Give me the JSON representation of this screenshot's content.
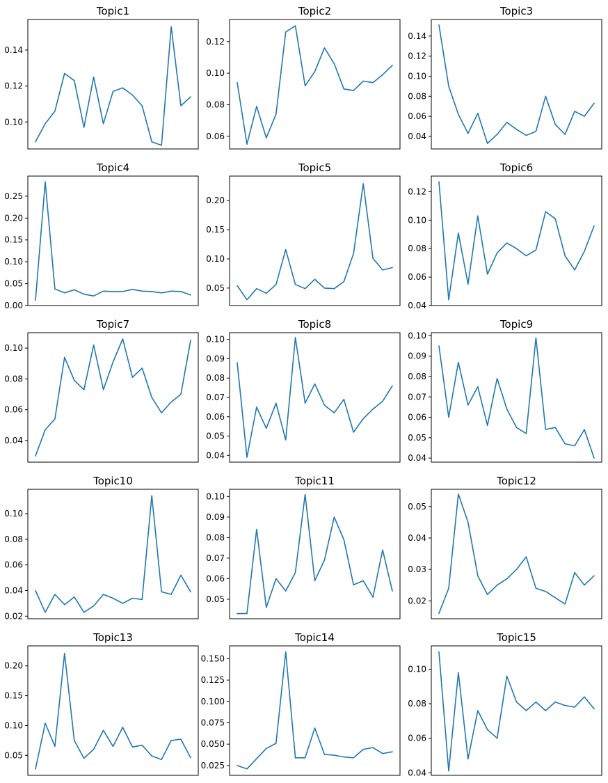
{
  "figure": {
    "line_color": "#1f77b4"
  },
  "chart_data": [
    {
      "type": "line",
      "title": "Topic1",
      "xlabel": "",
      "ylabel": "",
      "x_ticks_shown": false,
      "ylim": [
        0.085,
        0.157
      ],
      "yticks": [
        0.1,
        0.12,
        0.14
      ],
      "ytick_labels": [
        "0.10",
        "0.12",
        "0.14"
      ],
      "series": [
        {
          "name": "Topic1",
          "values": [
            0.089,
            0.099,
            0.106,
            0.127,
            0.123,
            0.097,
            0.125,
            0.099,
            0.117,
            0.119,
            0.115,
            0.109,
            0.089,
            0.087,
            0.153,
            0.109,
            0.114
          ]
        }
      ]
    },
    {
      "type": "line",
      "title": "Topic2",
      "xlabel": "",
      "ylabel": "",
      "x_ticks_shown": false,
      "ylim": [
        0.052,
        0.134
      ],
      "yticks": [
        0.06,
        0.08,
        0.1,
        0.12
      ],
      "ytick_labels": [
        "0.06",
        "0.08",
        "0.10",
        "0.12"
      ],
      "series": [
        {
          "name": "Topic2",
          "values": [
            0.094,
            0.055,
            0.079,
            0.059,
            0.074,
            0.126,
            0.13,
            0.092,
            0.101,
            0.116,
            0.106,
            0.09,
            0.089,
            0.095,
            0.094,
            0.099,
            0.105
          ]
        }
      ]
    },
    {
      "type": "line",
      "title": "Topic3",
      "xlabel": "",
      "ylabel": "",
      "x_ticks_shown": false,
      "ylim": [
        0.0275,
        0.1565
      ],
      "yticks": [
        0.04,
        0.06,
        0.08,
        0.1,
        0.12,
        0.14
      ],
      "ytick_labels": [
        "0.04",
        "0.06",
        "0.08",
        "0.10",
        "0.12",
        "0.14"
      ],
      "series": [
        {
          "name": "Topic3",
          "values": [
            0.151,
            0.09,
            0.062,
            0.043,
            0.063,
            0.033,
            0.042,
            0.054,
            0.047,
            0.041,
            0.045,
            0.08,
            0.052,
            0.042,
            0.065,
            0.06,
            0.073
          ]
        }
      ]
    },
    {
      "type": "line",
      "title": "Topic4",
      "xlabel": "",
      "ylabel": "",
      "x_ticks_shown": false,
      "ylim": [
        0.0,
        0.296
      ],
      "yticks": [
        0.0,
        0.05,
        0.1,
        0.15,
        0.2,
        0.25
      ],
      "ytick_labels": [
        "0.00",
        "0.05",
        "0.10",
        "0.15",
        "0.20",
        "0.25"
      ],
      "series": [
        {
          "name": "Topic4",
          "values": [
            0.012,
            0.283,
            0.038,
            0.029,
            0.036,
            0.026,
            0.022,
            0.033,
            0.032,
            0.032,
            0.037,
            0.033,
            0.032,
            0.029,
            0.033,
            0.032,
            0.024
          ]
        }
      ]
    },
    {
      "type": "line",
      "title": "Topic5",
      "xlabel": "",
      "ylabel": "",
      "x_ticks_shown": false,
      "ylim": [
        0.02,
        0.242
      ],
      "yticks": [
        0.05,
        0.1,
        0.15,
        0.2
      ],
      "ytick_labels": [
        "0.05",
        "0.10",
        "0.15",
        "0.20"
      ],
      "series": [
        {
          "name": "Topic5",
          "values": [
            0.054,
            0.03,
            0.049,
            0.041,
            0.056,
            0.116,
            0.056,
            0.049,
            0.065,
            0.05,
            0.049,
            0.061,
            0.109,
            0.229,
            0.101,
            0.081,
            0.085
          ]
        }
      ]
    },
    {
      "type": "line",
      "title": "Topic6",
      "xlabel": "",
      "ylabel": "",
      "x_ticks_shown": false,
      "ylim": [
        0.04,
        0.131
      ],
      "yticks": [
        0.04,
        0.06,
        0.08,
        0.1,
        0.12
      ],
      "ytick_labels": [
        "0.04",
        "0.06",
        "0.08",
        "0.10",
        "0.12"
      ],
      "series": [
        {
          "name": "Topic6",
          "values": [
            0.127,
            0.044,
            0.091,
            0.055,
            0.103,
            0.062,
            0.077,
            0.084,
            0.08,
            0.075,
            0.079,
            0.106,
            0.101,
            0.075,
            0.065,
            0.078,
            0.096
          ]
        }
      ]
    },
    {
      "type": "line",
      "title": "Topic7",
      "xlabel": "",
      "ylabel": "",
      "x_ticks_shown": false,
      "ylim": [
        0.026,
        0.11
      ],
      "yticks": [
        0.04,
        0.06,
        0.08,
        0.1
      ],
      "ytick_labels": [
        "0.04",
        "0.06",
        "0.08",
        "0.10"
      ],
      "series": [
        {
          "name": "Topic7",
          "values": [
            0.03,
            0.047,
            0.054,
            0.094,
            0.079,
            0.073,
            0.102,
            0.073,
            0.091,
            0.106,
            0.081,
            0.087,
            0.068,
            0.058,
            0.065,
            0.07,
            0.105
          ]
        }
      ]
    },
    {
      "type": "line",
      "title": "Topic8",
      "xlabel": "",
      "ylabel": "",
      "x_ticks_shown": false,
      "ylim": [
        0.0365,
        0.1035
      ],
      "yticks": [
        0.04,
        0.05,
        0.06,
        0.07,
        0.08,
        0.09,
        0.1
      ],
      "ytick_labels": [
        "0.04",
        "0.05",
        "0.06",
        "0.07",
        "0.08",
        "0.09",
        "0.10"
      ],
      "series": [
        {
          "name": "Topic8",
          "values": [
            0.088,
            0.039,
            0.065,
            0.054,
            0.067,
            0.048,
            0.101,
            0.067,
            0.077,
            0.066,
            0.062,
            0.069,
            0.052,
            0.059,
            0.064,
            0.068,
            0.076
          ]
        }
      ]
    },
    {
      "type": "line",
      "title": "Topic9",
      "xlabel": "",
      "ylabel": "",
      "x_ticks_shown": false,
      "ylim": [
        0.038,
        0.1015
      ],
      "yticks": [
        0.04,
        0.05,
        0.06,
        0.07,
        0.08,
        0.09,
        0.1
      ],
      "ytick_labels": [
        "0.04",
        "0.05",
        "0.06",
        "0.07",
        "0.08",
        "0.09",
        "0.10"
      ],
      "series": [
        {
          "name": "Topic9",
          "values": [
            0.095,
            0.06,
            0.087,
            0.066,
            0.075,
            0.056,
            0.079,
            0.064,
            0.055,
            0.052,
            0.099,
            0.054,
            0.055,
            0.047,
            0.046,
            0.054,
            0.04
          ]
        }
      ]
    },
    {
      "type": "line",
      "title": "Topic10",
      "xlabel": "",
      "ylabel": "",
      "x_ticks_shown": false,
      "ylim": [
        0.018,
        0.119
      ],
      "yticks": [
        0.02,
        0.04,
        0.06,
        0.08,
        0.1
      ],
      "ytick_labels": [
        "0.02",
        "0.04",
        "0.06",
        "0.08",
        "0.10"
      ],
      "series": [
        {
          "name": "Topic10",
          "values": [
            0.04,
            0.023,
            0.037,
            0.029,
            0.035,
            0.023,
            0.028,
            0.037,
            0.034,
            0.03,
            0.034,
            0.033,
            0.114,
            0.039,
            0.037,
            0.052,
            0.039
          ]
        }
      ]
    },
    {
      "type": "line",
      "title": "Topic11",
      "xlabel": "",
      "ylabel": "",
      "x_ticks_shown": false,
      "ylim": [
        0.0405,
        0.1035
      ],
      "yticks": [
        0.05,
        0.06,
        0.07,
        0.08,
        0.09,
        0.1
      ],
      "ytick_labels": [
        "0.05",
        "0.06",
        "0.07",
        "0.08",
        "0.09",
        "0.10"
      ],
      "series": [
        {
          "name": "Topic11",
          "values": [
            0.043,
            0.043,
            0.084,
            0.046,
            0.06,
            0.054,
            0.063,
            0.101,
            0.059,
            0.069,
            0.09,
            0.079,
            0.057,
            0.059,
            0.051,
            0.074,
            0.054
          ]
        }
      ]
    },
    {
      "type": "line",
      "title": "Topic12",
      "xlabel": "",
      "ylabel": "",
      "x_ticks_shown": false,
      "ylim": [
        0.0143,
        0.0555
      ],
      "yticks": [
        0.02,
        0.03,
        0.04,
        0.05
      ],
      "ytick_labels": [
        "0.02",
        "0.03",
        "0.04",
        "0.05"
      ],
      "series": [
        {
          "name": "Topic12",
          "values": [
            0.016,
            0.024,
            0.054,
            0.045,
            0.028,
            0.022,
            0.025,
            0.027,
            0.03,
            0.034,
            0.024,
            0.023,
            0.021,
            0.019,
            0.029,
            0.025,
            0.028
          ]
        }
      ]
    },
    {
      "type": "line",
      "title": "Topic13",
      "xlabel": "",
      "ylabel": "",
      "x_ticks_shown": false,
      "ylim": [
        0.0165,
        0.2335
      ],
      "yticks": [
        0.05,
        0.1,
        0.15,
        0.2
      ],
      "ytick_labels": [
        "0.05",
        "0.10",
        "0.15",
        "0.20"
      ],
      "series": [
        {
          "name": "Topic13",
          "values": [
            0.027,
            0.104,
            0.065,
            0.221,
            0.075,
            0.045,
            0.06,
            0.092,
            0.065,
            0.097,
            0.064,
            0.067,
            0.049,
            0.043,
            0.075,
            0.077,
            0.046
          ]
        }
      ]
    },
    {
      "type": "line",
      "title": "Topic14",
      "xlabel": "",
      "ylabel": "",
      "x_ticks_shown": false,
      "ylim": [
        0.0135,
        0.165
      ],
      "yticks": [
        0.025,
        0.05,
        0.075,
        0.1,
        0.125,
        0.15
      ],
      "ytick_labels": [
        "0.025",
        "0.050",
        "0.075",
        "0.100",
        "0.125",
        "0.150"
      ],
      "series": [
        {
          "name": "Topic14",
          "values": [
            0.025,
            0.021,
            0.033,
            0.045,
            0.051,
            0.158,
            0.034,
            0.034,
            0.069,
            0.038,
            0.037,
            0.035,
            0.034,
            0.044,
            0.046,
            0.039,
            0.041
          ]
        }
      ]
    },
    {
      "type": "line",
      "title": "Topic15",
      "xlabel": "",
      "ylabel": "",
      "x_ticks_shown": false,
      "ylim": [
        0.0385,
        0.1135
      ],
      "yticks": [
        0.04,
        0.06,
        0.08,
        0.1
      ],
      "ytick_labels": [
        "0.04",
        "0.06",
        "0.08",
        "0.10"
      ],
      "series": [
        {
          "name": "Topic15",
          "values": [
            0.11,
            0.041,
            0.098,
            0.048,
            0.076,
            0.065,
            0.06,
            0.096,
            0.081,
            0.076,
            0.081,
            0.076,
            0.081,
            0.079,
            0.078,
            0.084,
            0.077
          ]
        }
      ]
    }
  ]
}
